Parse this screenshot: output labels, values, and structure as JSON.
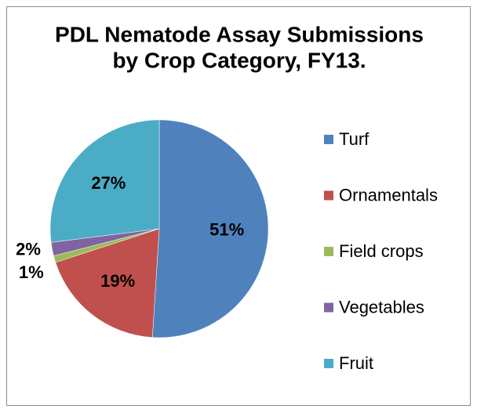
{
  "chart_data": {
    "type": "pie",
    "title": [
      "PDL Nematode Assay Submissions",
      "by Crop Category, FY13."
    ],
    "categories": [
      "Turf",
      "Ornamentals",
      "Field crops",
      "Vegetables",
      "Fruit"
    ],
    "values": [
      51,
      19,
      1,
      2,
      27
    ],
    "value_labels": [
      "51%",
      "19%",
      "1%",
      "2%",
      "27%"
    ],
    "colors": [
      "#4f81bd",
      "#c0504d",
      "#9bbb59",
      "#8064a2",
      "#4bacc6"
    ],
    "legend": "right"
  }
}
